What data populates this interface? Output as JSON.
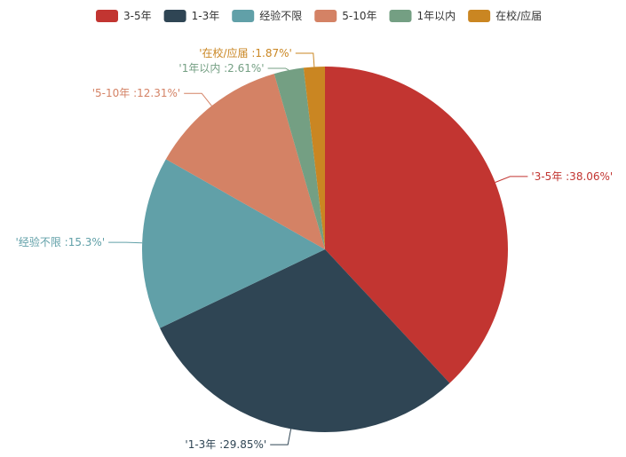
{
  "chart_data": {
    "type": "pie",
    "title": "",
    "legend_position": "top-center",
    "series": [
      {
        "name": "3-5年",
        "value": 38.06,
        "label": "'3-5年 :38.06%'",
        "color": "#c23531"
      },
      {
        "name": "1-3年",
        "value": 29.85,
        "label": "'1-3年 :29.85%'",
        "color": "#2f4554"
      },
      {
        "name": "经验不限",
        "value": 15.3,
        "label": "'经验不限 :15.3%'",
        "color": "#61a0a8"
      },
      {
        "name": "5-10年",
        "value": 12.31,
        "label": "'5-10年 :12.31%'",
        "color": "#d48265"
      },
      {
        "name": "1年以内",
        "value": 2.61,
        "label": "'1年以内 :2.61%'",
        "color": "#749f83"
      },
      {
        "name": "在校/应届",
        "value": 1.87,
        "label": "'在校/应届 :1.87%'",
        "color": "#ca8622"
      }
    ]
  }
}
